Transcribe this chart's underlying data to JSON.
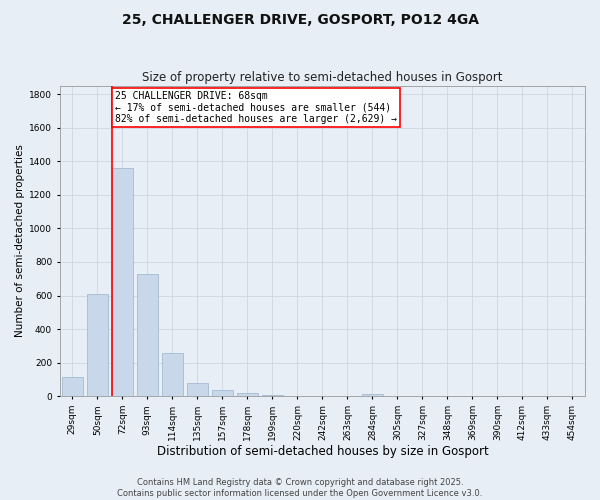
{
  "title": "25, CHALLENGER DRIVE, GOSPORT, PO12 4GA",
  "subtitle": "Size of property relative to semi-detached houses in Gosport",
  "xlabel": "Distribution of semi-detached houses by size in Gosport",
  "ylabel": "Number of semi-detached properties",
  "categories": [
    "29sqm",
    "50sqm",
    "72sqm",
    "93sqm",
    "114sqm",
    "135sqm",
    "157sqm",
    "178sqm",
    "199sqm",
    "220sqm",
    "242sqm",
    "263sqm",
    "284sqm",
    "305sqm",
    "327sqm",
    "348sqm",
    "369sqm",
    "390sqm",
    "412sqm",
    "433sqm",
    "454sqm"
  ],
  "values": [
    115,
    610,
    1360,
    730,
    255,
    80,
    35,
    20,
    5,
    2,
    0,
    0,
    15,
    0,
    0,
    0,
    0,
    0,
    0,
    0,
    0
  ],
  "bar_color": "#c8d8ea",
  "bar_edge_color": "#9ab4cc",
  "vline_color": "red",
  "vline_x_idx": 2,
  "annotation_text": "25 CHALLENGER DRIVE: 68sqm\n← 17% of semi-detached houses are smaller (544)\n82% of semi-detached houses are larger (2,629) →",
  "annotation_box_color": "white",
  "annotation_box_edge_color": "red",
  "ylim": [
    0,
    1850
  ],
  "yticks": [
    0,
    200,
    400,
    600,
    800,
    1000,
    1200,
    1400,
    1600,
    1800
  ],
  "grid_color": "#c8d0dc",
  "background_color": "#e8eef5",
  "plot_bg_color": "#e8eef5",
  "footer_line1": "Contains HM Land Registry data © Crown copyright and database right 2025.",
  "footer_line2": "Contains public sector information licensed under the Open Government Licence v3.0.",
  "title_fontsize": 10,
  "subtitle_fontsize": 8.5,
  "xlabel_fontsize": 8.5,
  "ylabel_fontsize": 7.5,
  "tick_fontsize": 6.5,
  "annotation_fontsize": 7,
  "footer_fontsize": 6
}
